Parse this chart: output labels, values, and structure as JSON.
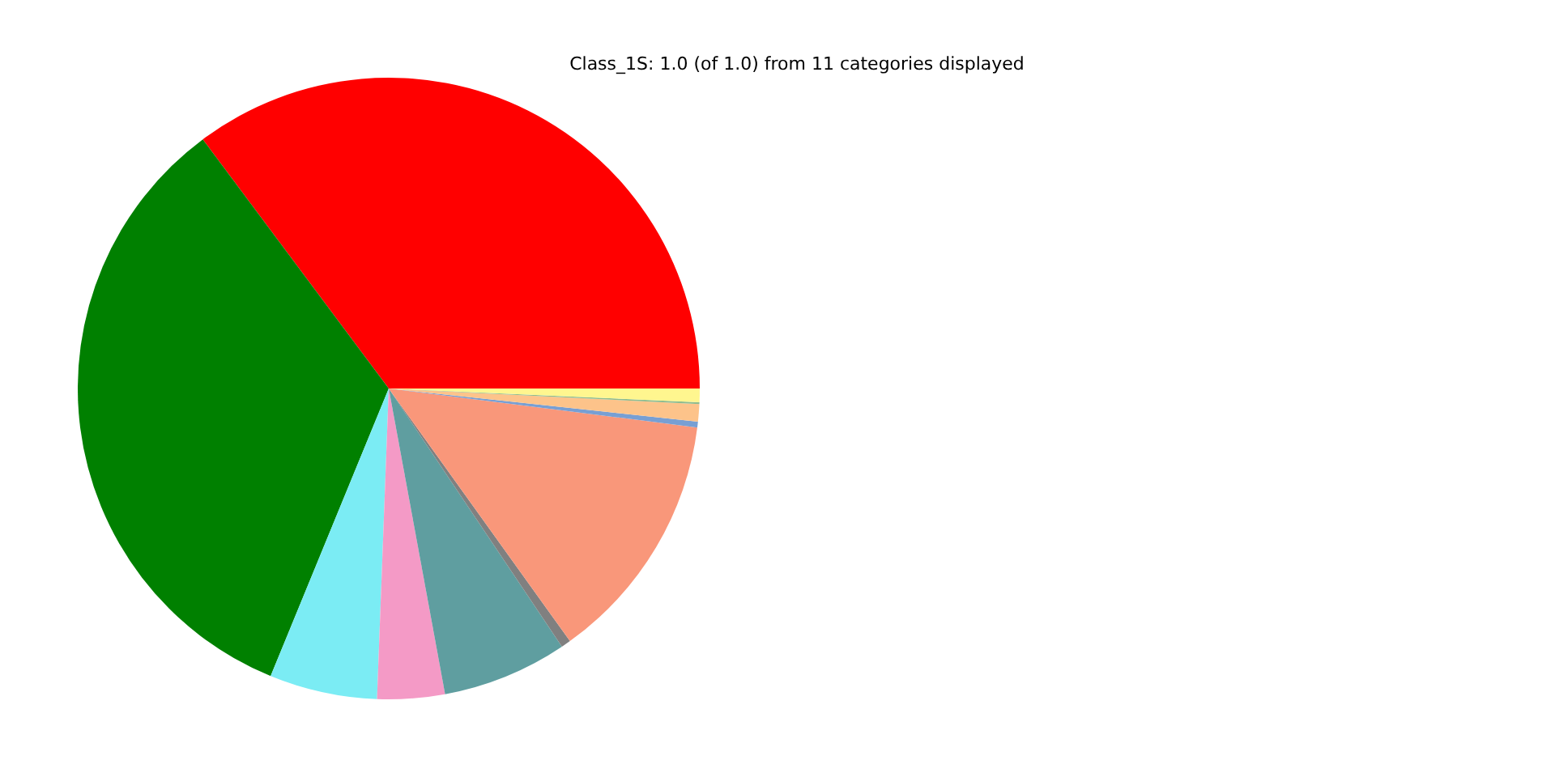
{
  "chart_data": {
    "type": "pie",
    "title": "Class_1S: 1.0 (of 1.0) from 11 categories displayed",
    "categories": [
      null,
      null,
      null,
      null,
      null,
      null,
      null,
      null,
      null,
      null,
      null
    ],
    "values": [
      35.2,
      33.6,
      5.6,
      3.5,
      6.5,
      0.5,
      13.1,
      0.3,
      0.9,
      0.1,
      0.7
    ],
    "colors": [
      "#ff0000",
      "#008000",
      "#7becf4",
      "#f49ac6",
      "#5f9ea0",
      "#808080",
      "#f9977a",
      "#789fd3",
      "#fdc38a",
      "#8fbc8f",
      "#fff68f"
    ],
    "legend": false
  }
}
